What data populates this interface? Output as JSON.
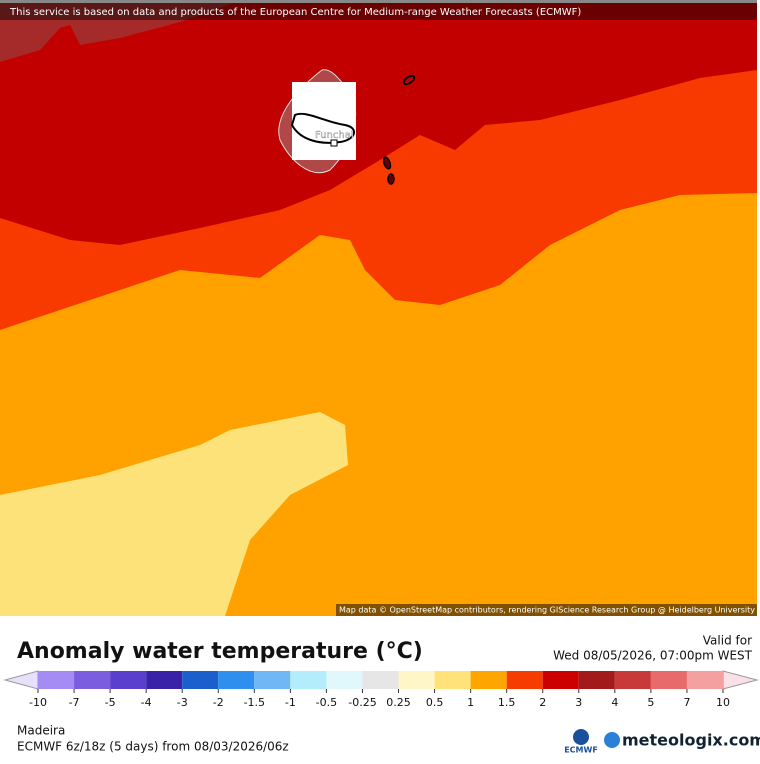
{
  "header": {
    "notice": "This service is based on data and products of the European Centre for Medium-range Weather Forecasts (ECMWF)"
  },
  "map": {
    "place_label": "Funchal",
    "attribution": "Map data © OpenStreetMap contributors, rendering GIScience Research Group @ Heidelberg University"
  },
  "legend": {
    "title": "Anomaly water temperature (°C)",
    "ticks": [
      -10,
      -7,
      -5,
      -4,
      -3,
      -2,
      -1.5,
      -1,
      -0.5,
      -0.25,
      0.25,
      0.5,
      1,
      1.5,
      2,
      3,
      4,
      5,
      7,
      10
    ],
    "colors": [
      "#a58cf5",
      "#7b5de0",
      "#5a3fcf",
      "#3a22a8",
      "#1a5fcc",
      "#2f8fef",
      "#6fb8f5",
      "#b3ecfa",
      "#e0f8fc",
      "#e6e6e6",
      "#fff6c8",
      "#ffe27a",
      "#ffa500",
      "#f73c00",
      "#cc0000",
      "#a31a1a",
      "#c83a3a",
      "#e86a6a",
      "#f4a0a0"
    ],
    "low_color": "#e6e0fb",
    "high_color": "#fbe0e8"
  },
  "valid": {
    "label": "Valid for",
    "time": "Wed 08/05/2026, 07:00pm WEST"
  },
  "footer": {
    "region": "Madeira",
    "model": "ECMWF 6z/18z (5 days) from 08/03/2026/06z",
    "ecmwf_logo": "ECMWF",
    "brand": "meteologix.com"
  }
}
